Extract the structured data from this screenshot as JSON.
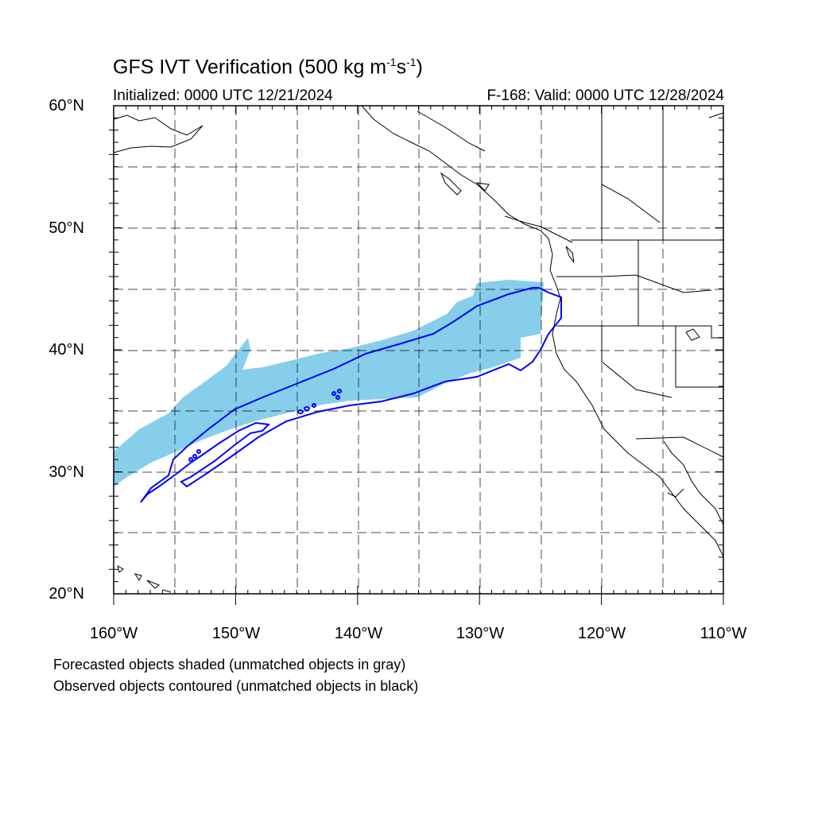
{
  "title_main": "GFS IVT Verification (500 kg m",
  "title_sup1": "-1",
  "title_mid": "s",
  "title_sup2": "-1",
  "title_end": ")",
  "init_label": "Initialized: 0000 UTC 12/21/2024",
  "valid_label": "F-168: Valid: 0000 UTC 12/28/2024",
  "lat_labels": [
    "60°N",
    "50°N",
    "40°N",
    "30°N",
    "20°N"
  ],
  "lon_labels": [
    "160°W",
    "150°W",
    "140°W",
    "130°W",
    "120°W",
    "110°W"
  ],
  "footnote_1": "Forecasted objects shaded (unmatched objects in gray)",
  "footnote_2": "Observed objects contoured (unmatched objects in black)",
  "colors": {
    "forecast_fill": "#87ceeb",
    "observed_contour": "#0000ff",
    "grid": "#000000"
  }
}
